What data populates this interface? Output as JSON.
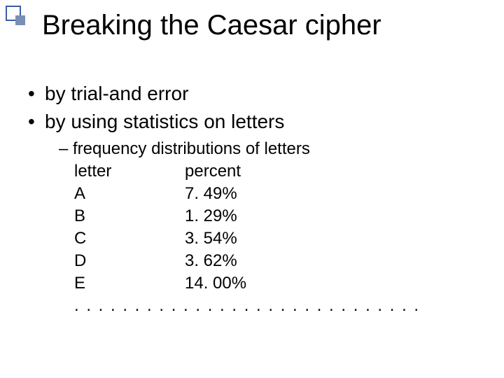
{
  "title": "Breaking the Caesar cipher",
  "bullets": {
    "items": [
      "by trial-and error",
      "by using statistics on letters"
    ]
  },
  "sub": {
    "heading": "frequency distributions of letters",
    "columns": {
      "letter": "letter",
      "percent": "percent"
    },
    "rows": [
      {
        "letter": "A",
        "percent": "7. 49%"
      },
      {
        "letter": "B",
        "percent": "1. 29%"
      },
      {
        "letter": "C",
        "percent": "3. 54%"
      },
      {
        "letter": "D",
        "percent": "3. 62%"
      },
      {
        "letter": "E",
        "percent": "14. 00%"
      }
    ],
    "ellipsis": ". . . . . . . . . . . . . . . . . . . . . . . . . . . . ."
  },
  "style": {
    "background_color": "#ffffff",
    "text_color": "#000000",
    "accent_outline": "#3a5fa0",
    "accent_solid": "#7a8fb5",
    "title_fontsize": 40,
    "bullet_fontsize": 28,
    "sub_fontsize": 24,
    "font_family": "Arial"
  }
}
